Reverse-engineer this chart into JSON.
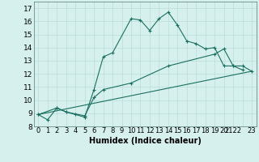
{
  "title": "",
  "xlabel": "Humidex (Indice chaleur)",
  "background_color": "#d6f0ee",
  "grid_color": "#b8dcd8",
  "line_color": "#1a7060",
  "xlim": [
    -0.5,
    23.5
  ],
  "ylim": [
    8,
    17.5
  ],
  "yticks": [
    8,
    9,
    10,
    11,
    12,
    13,
    14,
    15,
    16,
    17
  ],
  "series1_x": [
    0,
    1,
    2,
    3,
    4,
    5,
    6,
    7,
    8,
    10,
    11,
    12,
    13,
    14,
    15,
    16,
    17,
    18,
    19,
    20,
    21,
    22
  ],
  "series1_y": [
    8.9,
    8.5,
    9.4,
    9.1,
    8.9,
    8.7,
    10.8,
    13.3,
    13.6,
    16.2,
    16.1,
    15.3,
    16.2,
    16.7,
    15.7,
    14.5,
    14.3,
    13.9,
    14.0,
    12.6,
    12.6,
    12.3
  ],
  "series2_x": [
    0,
    2,
    3,
    5,
    6,
    7,
    10,
    14,
    19,
    20,
    21,
    22,
    23
  ],
  "series2_y": [
    8.9,
    9.4,
    9.1,
    8.8,
    10.2,
    10.8,
    11.3,
    12.6,
    13.5,
    13.9,
    12.6,
    12.6,
    12.2
  ],
  "series3_x": [
    0,
    23
  ],
  "series3_y": [
    8.9,
    12.2
  ],
  "font_size": 6.5,
  "marker_size": 3.5
}
